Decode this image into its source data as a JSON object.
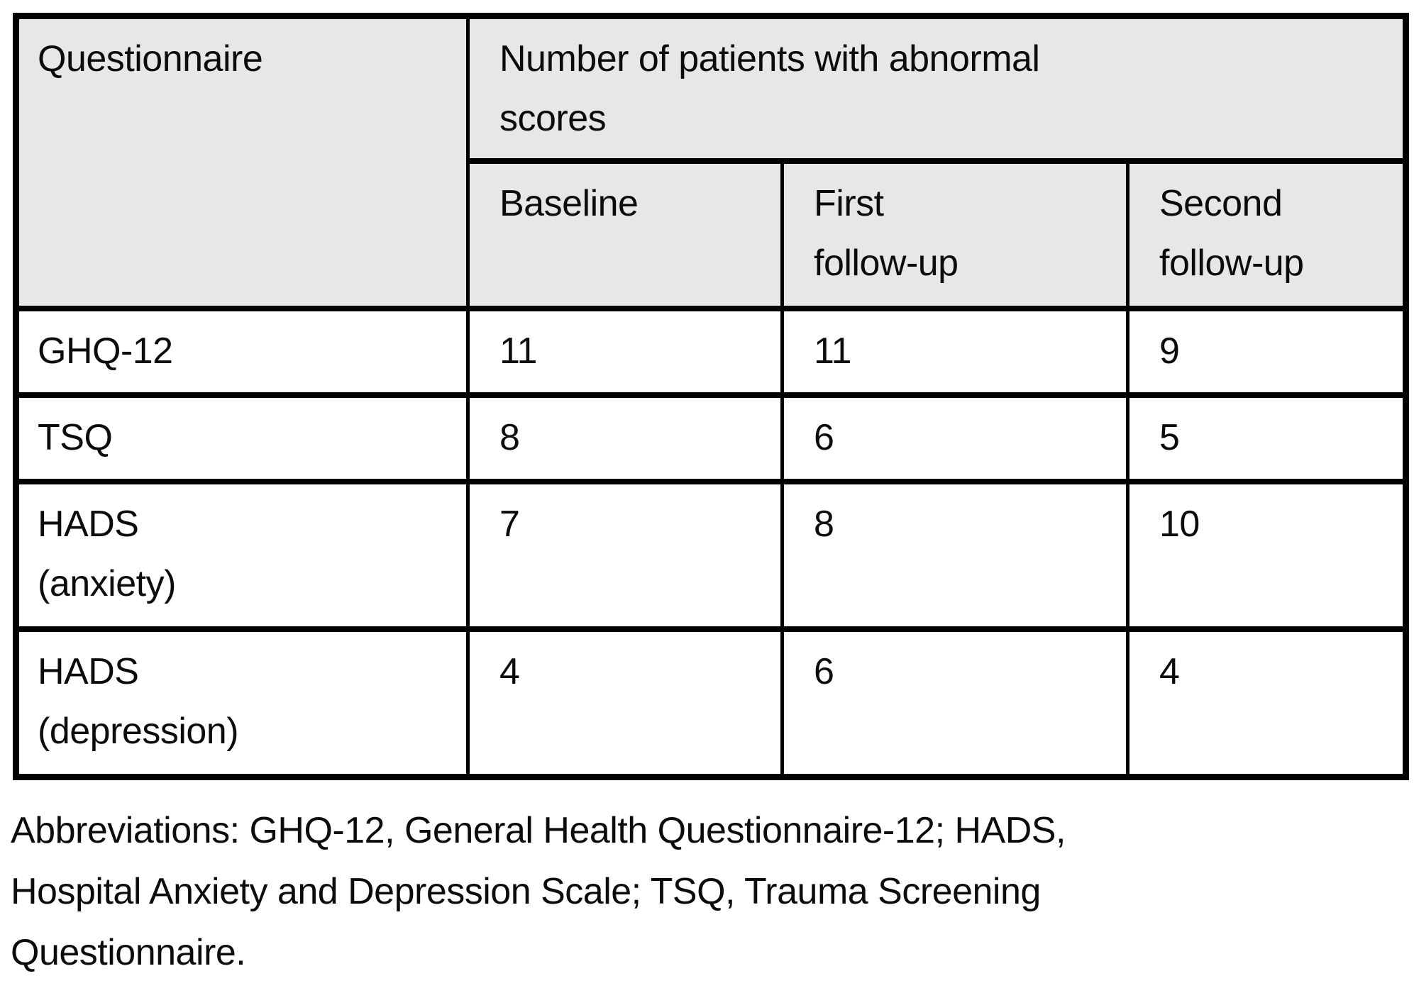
{
  "colors": {
    "header_bg": "#e6e7e8",
    "border": "#000000",
    "text": "#0c0c0c",
    "body_bg": "#ffffff"
  },
  "table": {
    "header": {
      "questionnaire": "Questionnaire",
      "group": "Number of patients with abnormal\nscores",
      "columns": [
        "Baseline",
        "First\nfollow-up",
        "Second\nfollow-up"
      ]
    },
    "rows": [
      {
        "label": "GHQ-12",
        "baseline": "11",
        "first_followup": "11",
        "second_followup": "9"
      },
      {
        "label": "TSQ",
        "baseline": "8",
        "first_followup": "6",
        "second_followup": "5"
      },
      {
        "label": "HADS\n(anxiety)",
        "baseline": "7",
        "first_followup": "8",
        "second_followup": "10"
      },
      {
        "label": "HADS\n(depression)",
        "baseline": "4",
        "first_followup": "6",
        "second_followup": "4"
      }
    ]
  },
  "footnote": "Abbreviations: GHQ-12, General Health Questionnaire-12; HADS,\nHospital Anxiety and Depression Scale; TSQ, Trauma Screening\nQuestionnaire."
}
